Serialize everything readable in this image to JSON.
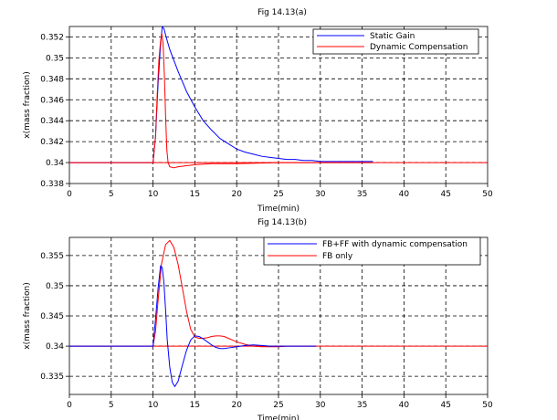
{
  "chart_data": [
    {
      "type": "line",
      "title": "Fig 14.13(a)",
      "xlabel": "Time(min)",
      "ylabel": "x(mass fraction)",
      "xlim": [
        0,
        50
      ],
      "ylim": [
        0.338,
        0.353
      ],
      "xticks": [
        0,
        5,
        10,
        15,
        20,
        25,
        30,
        35,
        40,
        45,
        50
      ],
      "xtick_labels": [
        "0",
        "5",
        "10",
        "15",
        "20",
        "25",
        "30",
        "35",
        "40",
        "45",
        "50"
      ],
      "yticks": [
        0.338,
        0.34,
        0.342,
        0.344,
        0.346,
        0.348,
        0.35,
        0.352
      ],
      "ytick_labels": [
        "0.338",
        "0.34",
        "0.342",
        "0.344",
        "0.346",
        "0.348",
        "0.35",
        "0.352"
      ],
      "grid": true,
      "legend_position": "top-right",
      "setpoint": 0.34,
      "series": [
        {
          "name": "Static Gain",
          "color": "#0000ff",
          "x": [
            0,
            10,
            10.3,
            10.6,
            10.9,
            11.1,
            11.3,
            11.6,
            12,
            13,
            14,
            15,
            16,
            17,
            18,
            19,
            20,
            21,
            22,
            23,
            24,
            25,
            26,
            27,
            28,
            29,
            30,
            31,
            32,
            33,
            34,
            35,
            36.3
          ],
          "y": [
            0.34,
            0.34,
            0.3425,
            0.3475,
            0.3513,
            0.353,
            0.3528,
            0.3519,
            0.3508,
            0.3487,
            0.3468,
            0.3453,
            0.344,
            0.3431,
            0.3423,
            0.3418,
            0.3413,
            0.341,
            0.3408,
            0.3406,
            0.3405,
            0.3404,
            0.3403,
            0.3403,
            0.3402,
            0.3402,
            0.3401,
            0.3401,
            0.3401,
            0.3401,
            0.3401,
            0.3401,
            0.3401
          ]
        },
        {
          "name": "Dynamic Compensation",
          "color": "#ff0000",
          "x": [
            0,
            10,
            10.3,
            10.5,
            10.7,
            10.9,
            11.05,
            11.2,
            11.35,
            11.5,
            11.65,
            11.8,
            12,
            12.5,
            13,
            14,
            15,
            17,
            20,
            25,
            30,
            36
          ],
          "y": [
            0.34,
            0.34,
            0.3425,
            0.3465,
            0.3498,
            0.3516,
            0.3523,
            0.3514,
            0.3485,
            0.3445,
            0.3412,
            0.34,
            0.3396,
            0.3395,
            0.3396,
            0.3397,
            0.3398,
            0.3399,
            0.3399,
            0.34,
            0.34,
            0.34
          ]
        }
      ]
    },
    {
      "type": "line",
      "title": "Fig 14.13(b)",
      "xlabel": "Time(min)",
      "ylabel": "x(mass fraction)",
      "xlim": [
        0,
        50
      ],
      "ylim": [
        0.332,
        0.358
      ],
      "xticks": [
        0,
        5,
        10,
        15,
        20,
        25,
        30,
        35,
        40,
        45,
        50
      ],
      "xtick_labels": [
        "0",
        "5",
        "10",
        "15",
        "20",
        "25",
        "30",
        "35",
        "40",
        "45",
        "50"
      ],
      "yticks": [
        0.335,
        0.34,
        0.345,
        0.35,
        0.355
      ],
      "ytick_labels": [
        "0.335",
        "0.34",
        "0.345",
        "0.35",
        "0.355"
      ],
      "grid": true,
      "legend_position": "top-right",
      "setpoint": 0.34,
      "series": [
        {
          "name": "FB+FF with dynamic compensation",
          "color": "#0000ff",
          "x": [
            0,
            10,
            10.3,
            10.6,
            10.9,
            11.1,
            11.3,
            11.5,
            11.7,
            12,
            12.3,
            12.6,
            13,
            13.5,
            14,
            14.5,
            15,
            15.5,
            16,
            16.5,
            17,
            17.5,
            18,
            18.5,
            19,
            20,
            21,
            22,
            23,
            24,
            25,
            26,
            27,
            28,
            29.5
          ],
          "y": [
            0.34,
            0.34,
            0.3445,
            0.3495,
            0.3533,
            0.353,
            0.3505,
            0.346,
            0.341,
            0.3365,
            0.334,
            0.3333,
            0.3342,
            0.3368,
            0.3393,
            0.341,
            0.3417,
            0.3416,
            0.3412,
            0.3407,
            0.3402,
            0.3398,
            0.3396,
            0.3396,
            0.3397,
            0.3399,
            0.3401,
            0.3402,
            0.3401,
            0.34,
            0.34,
            0.34,
            0.34,
            0.34,
            0.34
          ]
        },
        {
          "name": "FB only",
          "color": "#ff0000",
          "x": [
            0,
            10,
            10.3,
            10.6,
            11,
            11.5,
            12,
            12.5,
            13,
            13.5,
            14,
            14.5,
            15,
            15.5,
            16,
            16.5,
            17,
            17.5,
            18,
            18.5,
            19,
            19.5,
            20,
            21,
            22,
            23,
            24,
            25,
            26,
            27,
            28,
            29.5
          ],
          "y": [
            0.34,
            0.34,
            0.3425,
            0.3475,
            0.3535,
            0.3568,
            0.3575,
            0.3563,
            0.3535,
            0.3497,
            0.3458,
            0.3428,
            0.3415,
            0.3413,
            0.3413,
            0.3414,
            0.3416,
            0.3417,
            0.3417,
            0.3416,
            0.3413,
            0.341,
            0.3407,
            0.3403,
            0.34,
            0.3399,
            0.3399,
            0.3399,
            0.34,
            0.34,
            0.34,
            0.34
          ]
        }
      ]
    }
  ]
}
